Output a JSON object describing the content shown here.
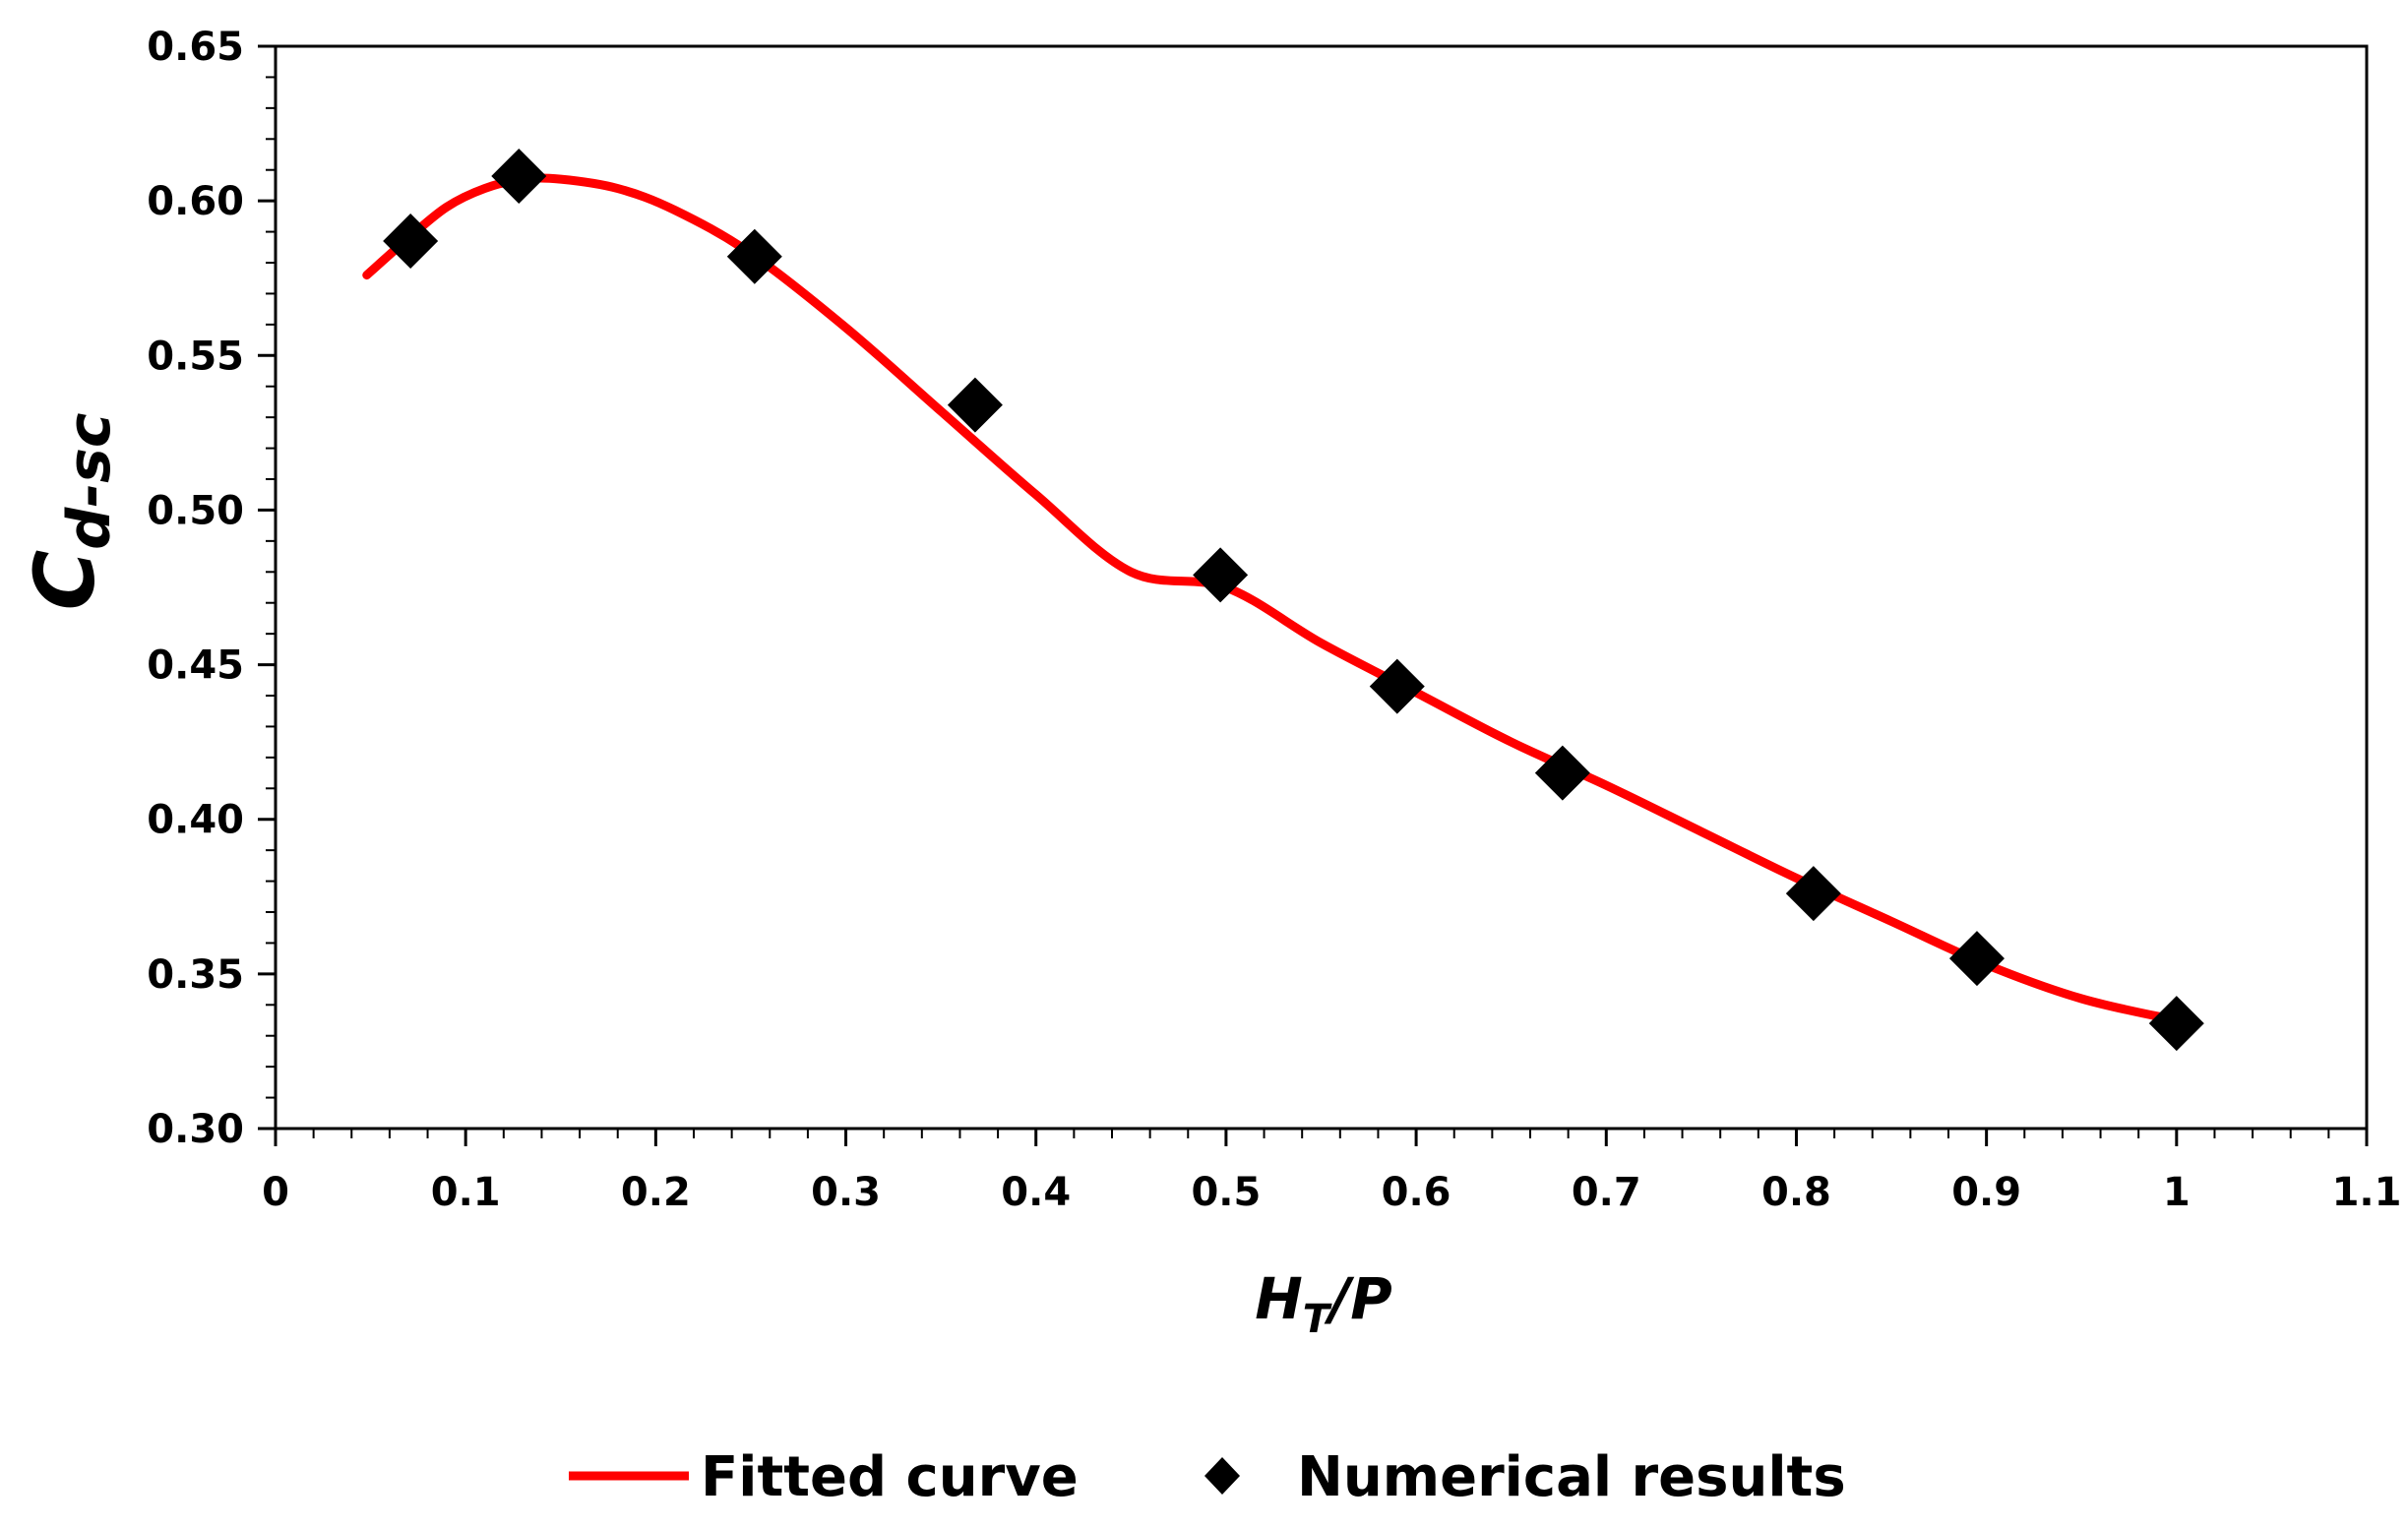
{
  "chart_data": {
    "type": "scatter",
    "title": "",
    "xlabel": {
      "main": "H",
      "sub": "T",
      "rest": "/P"
    },
    "ylabel": {
      "main": "C",
      "sub": "d-sc"
    },
    "xlim": [
      0,
      1.1
    ],
    "ylim": [
      0.3,
      0.65
    ],
    "x_ticks": [
      0,
      0.1,
      0.2,
      0.3,
      0.4,
      0.5,
      0.6,
      0.7,
      0.8,
      0.9,
      1.0,
      1.1
    ],
    "x_tick_labels": [
      "0",
      "0.1",
      "0.2",
      "0.3",
      "0.4",
      "0.5",
      "0.6",
      "0.7",
      "0.8",
      "0.9",
      "1",
      "1.1"
    ],
    "y_ticks": [
      0.3,
      0.35,
      0.4,
      0.45,
      0.5,
      0.55,
      0.6,
      0.65
    ],
    "y_tick_labels": [
      "0.30",
      "0.35",
      "0.40",
      "0.45",
      "0.50",
      "0.55",
      "0.60",
      "0.65"
    ],
    "grid": false,
    "legend_position": "bottom",
    "series": [
      {
        "name": "Fitted curve",
        "kind": "line",
        "color": "#ff0000",
        "x": [
          0.048,
          0.07,
          0.09,
          0.11,
          0.13,
          0.15,
          0.18,
          0.21,
          0.25,
          0.3,
          0.35,
          0.4,
          0.45,
          0.5,
          0.55,
          0.6,
          0.65,
          0.7,
          0.75,
          0.8,
          0.85,
          0.9,
          0.95,
          1.0
        ],
        "y": [
          0.576,
          0.588,
          0.598,
          0.604,
          0.607,
          0.607,
          0.604,
          0.597,
          0.583,
          0.559,
          0.532,
          0.505,
          0.48,
          0.475,
          0.457,
          0.441,
          0.425,
          0.411,
          0.396,
          0.381,
          0.367,
          0.353,
          0.342,
          0.335
        ]
      },
      {
        "name": "Numerical results",
        "kind": "marker",
        "marker": "diamond",
        "color": "#000000",
        "x": [
          0.071,
          0.128,
          0.252,
          0.368,
          0.497,
          0.59,
          0.677,
          0.809,
          0.895,
          1.0
        ],
        "y": [
          0.587,
          0.608,
          0.582,
          0.534,
          0.479,
          0.443,
          0.415,
          0.376,
          0.355,
          0.334
        ]
      }
    ]
  }
}
